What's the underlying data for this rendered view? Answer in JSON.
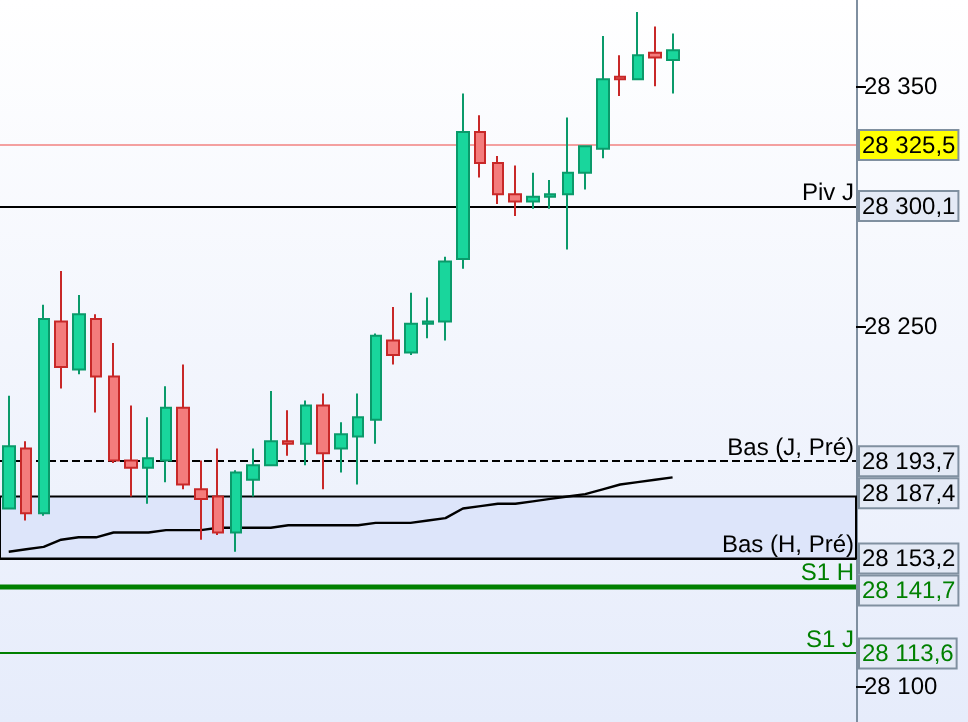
{
  "chart_data": {
    "type": "candlestick",
    "categories": [
      null,
      null,
      null,
      null,
      null,
      null,
      null,
      null,
      null,
      null,
      null,
      null,
      null,
      null,
      null,
      null,
      null,
      null,
      null,
      null,
      null,
      null,
      null,
      null,
      null,
      null,
      null,
      null,
      null,
      null,
      null,
      null,
      null,
      null,
      null,
      null,
      null,
      null,
      null
    ],
    "ohlc": [
      [
        28174,
        28221,
        28174,
        28200
      ],
      [
        28199,
        28202,
        28169,
        28172
      ],
      [
        28172,
        28259,
        28171,
        28253
      ],
      [
        28252,
        28273,
        28224,
        28233
      ],
      [
        28232,
        28263,
        28230,
        28255
      ],
      [
        28253,
        28255,
        28214,
        28229
      ],
      [
        28229,
        28243,
        28193,
        28194
      ],
      [
        28194,
        28217,
        28179,
        28191
      ],
      [
        28191,
        28212,
        28176,
        28195
      ],
      [
        28194,
        28225,
        28185,
        28216
      ],
      [
        28216,
        28234,
        28182,
        28184
      ],
      [
        28182,
        28194,
        28161,
        28178
      ],
      [
        28179,
        28199,
        28163,
        28164
      ],
      [
        28164,
        28190,
        28156,
        28189
      ],
      [
        28186,
        28199,
        28179,
        28192
      ],
      [
        28192,
        28223,
        28192,
        28202
      ],
      [
        28202,
        28215,
        28196,
        28201
      ],
      [
        28201,
        28219,
        28192,
        28217
      ],
      [
        28217,
        28222,
        28182,
        28197
      ],
      [
        28199,
        28210,
        28189,
        28205
      ],
      [
        28204,
        28222,
        28184,
        28212
      ],
      [
        28211,
        28247,
        28201,
        28246
      ],
      [
        28244,
        28258,
        28234,
        28238
      ],
      [
        28239,
        28264,
        28238,
        28251
      ],
      [
        28251,
        28262,
        28245,
        28252
      ],
      [
        28252,
        28279,
        28244,
        28277
      ],
      [
        28278,
        28347,
        28274,
        28331
      ],
      [
        28331,
        28338,
        28312,
        28318
      ],
      [
        28318,
        28321,
        28301,
        28305
      ],
      [
        28305,
        28317,
        28296,
        28302
      ],
      [
        28302,
        28314,
        28299,
        28304
      ],
      [
        28304,
        28311,
        28299,
        28305
      ],
      [
        28305,
        28337,
        28282,
        28314
      ],
      [
        28314,
        28325,
        28307,
        28325
      ],
      [
        28324,
        28371,
        28320,
        28353
      ],
      [
        28354,
        28363,
        28346,
        28353
      ],
      [
        28353,
        28381,
        28353,
        28363
      ],
      [
        28364,
        28375,
        28350,
        28362
      ],
      [
        28361,
        28372,
        28347,
        28365
      ]
    ],
    "colors": [
      "#19d69c",
      "#f47c7c",
      "#19d69c",
      "#f47c7c",
      "#19d69c",
      "#f47c7c",
      "#f47c7c",
      "#f47c7c",
      "#19d69c",
      "#19d69c",
      "#f47c7c",
      "#f47c7c",
      "#f47c7c",
      "#19d69c",
      "#19d69c",
      "#19d69c",
      "#f47c7c",
      "#19d69c",
      "#f47c7c",
      "#19d69c",
      "#19d69c",
      "#19d69c",
      "#f47c7c",
      "#19d69c",
      "#19d69c",
      "#19d69c",
      "#19d69c",
      "#f47c7c",
      "#f47c7c",
      "#f47c7c",
      "#19d69c",
      "#19d69c",
      "#19d69c",
      "#19d69c",
      "#19d69c",
      "#f47c7c",
      "#19d69c",
      "#f47c7c",
      "#19d69c"
    ],
    "series": [
      {
        "type": "line",
        "color": "#000000",
        "values": [
          28156,
          28157,
          28158,
          28161,
          28162,
          28162,
          28164,
          28164,
          28164,
          28165,
          28165,
          28165,
          28166,
          28166,
          28166,
          28166,
          28167,
          28167,
          28167,
          28167,
          28167,
          28168,
          28168,
          28168,
          28169,
          28170,
          28174,
          28175,
          28176,
          28176,
          28177,
          28178,
          28179,
          28180,
          28182,
          28184,
          28185,
          28186,
          28187
        ]
      }
    ],
    "ylim": [
      28085,
      28386
    ],
    "yticks": [
      {
        "value": 28100,
        "label": "28 100"
      },
      {
        "value": 28250,
        "label": "28 250"
      },
      {
        "value": 28350,
        "label": "28 350"
      }
    ],
    "tick_labels": "y",
    "grid": false,
    "ref_lines": [
      {
        "axis": "y",
        "value": 28325.5,
        "label": null,
        "color": "#f4a0a0"
      },
      {
        "axis": "y",
        "value": 28300.1,
        "label": "Piv J",
        "color": "#000000"
      },
      {
        "axis": "y",
        "value": 28193.7,
        "label": "Bas (J, Pré)",
        "color": "#000000",
        "line_style": "dashed"
      },
      {
        "axis": "y",
        "value": 28153.2,
        "label": "Bas (H, Pré)",
        "color": "#000000"
      },
      {
        "axis": "y",
        "value": 28141.7,
        "label": "S1 H",
        "color": "#008000"
      },
      {
        "axis": "y",
        "value": 28113.6,
        "label": "S1 J",
        "color": "#008000"
      }
    ],
    "bands": [
      {
        "axis": "y",
        "from": 28153.2,
        "to": 28179,
        "label": null,
        "color": "#dde5fa"
      }
    ],
    "annotations": [
      "28 325,5",
      "28 300,1",
      "28 193,7",
      "28 187,4",
      "28 153,2",
      "28 141,7",
      "28 113,6"
    ]
  }
}
